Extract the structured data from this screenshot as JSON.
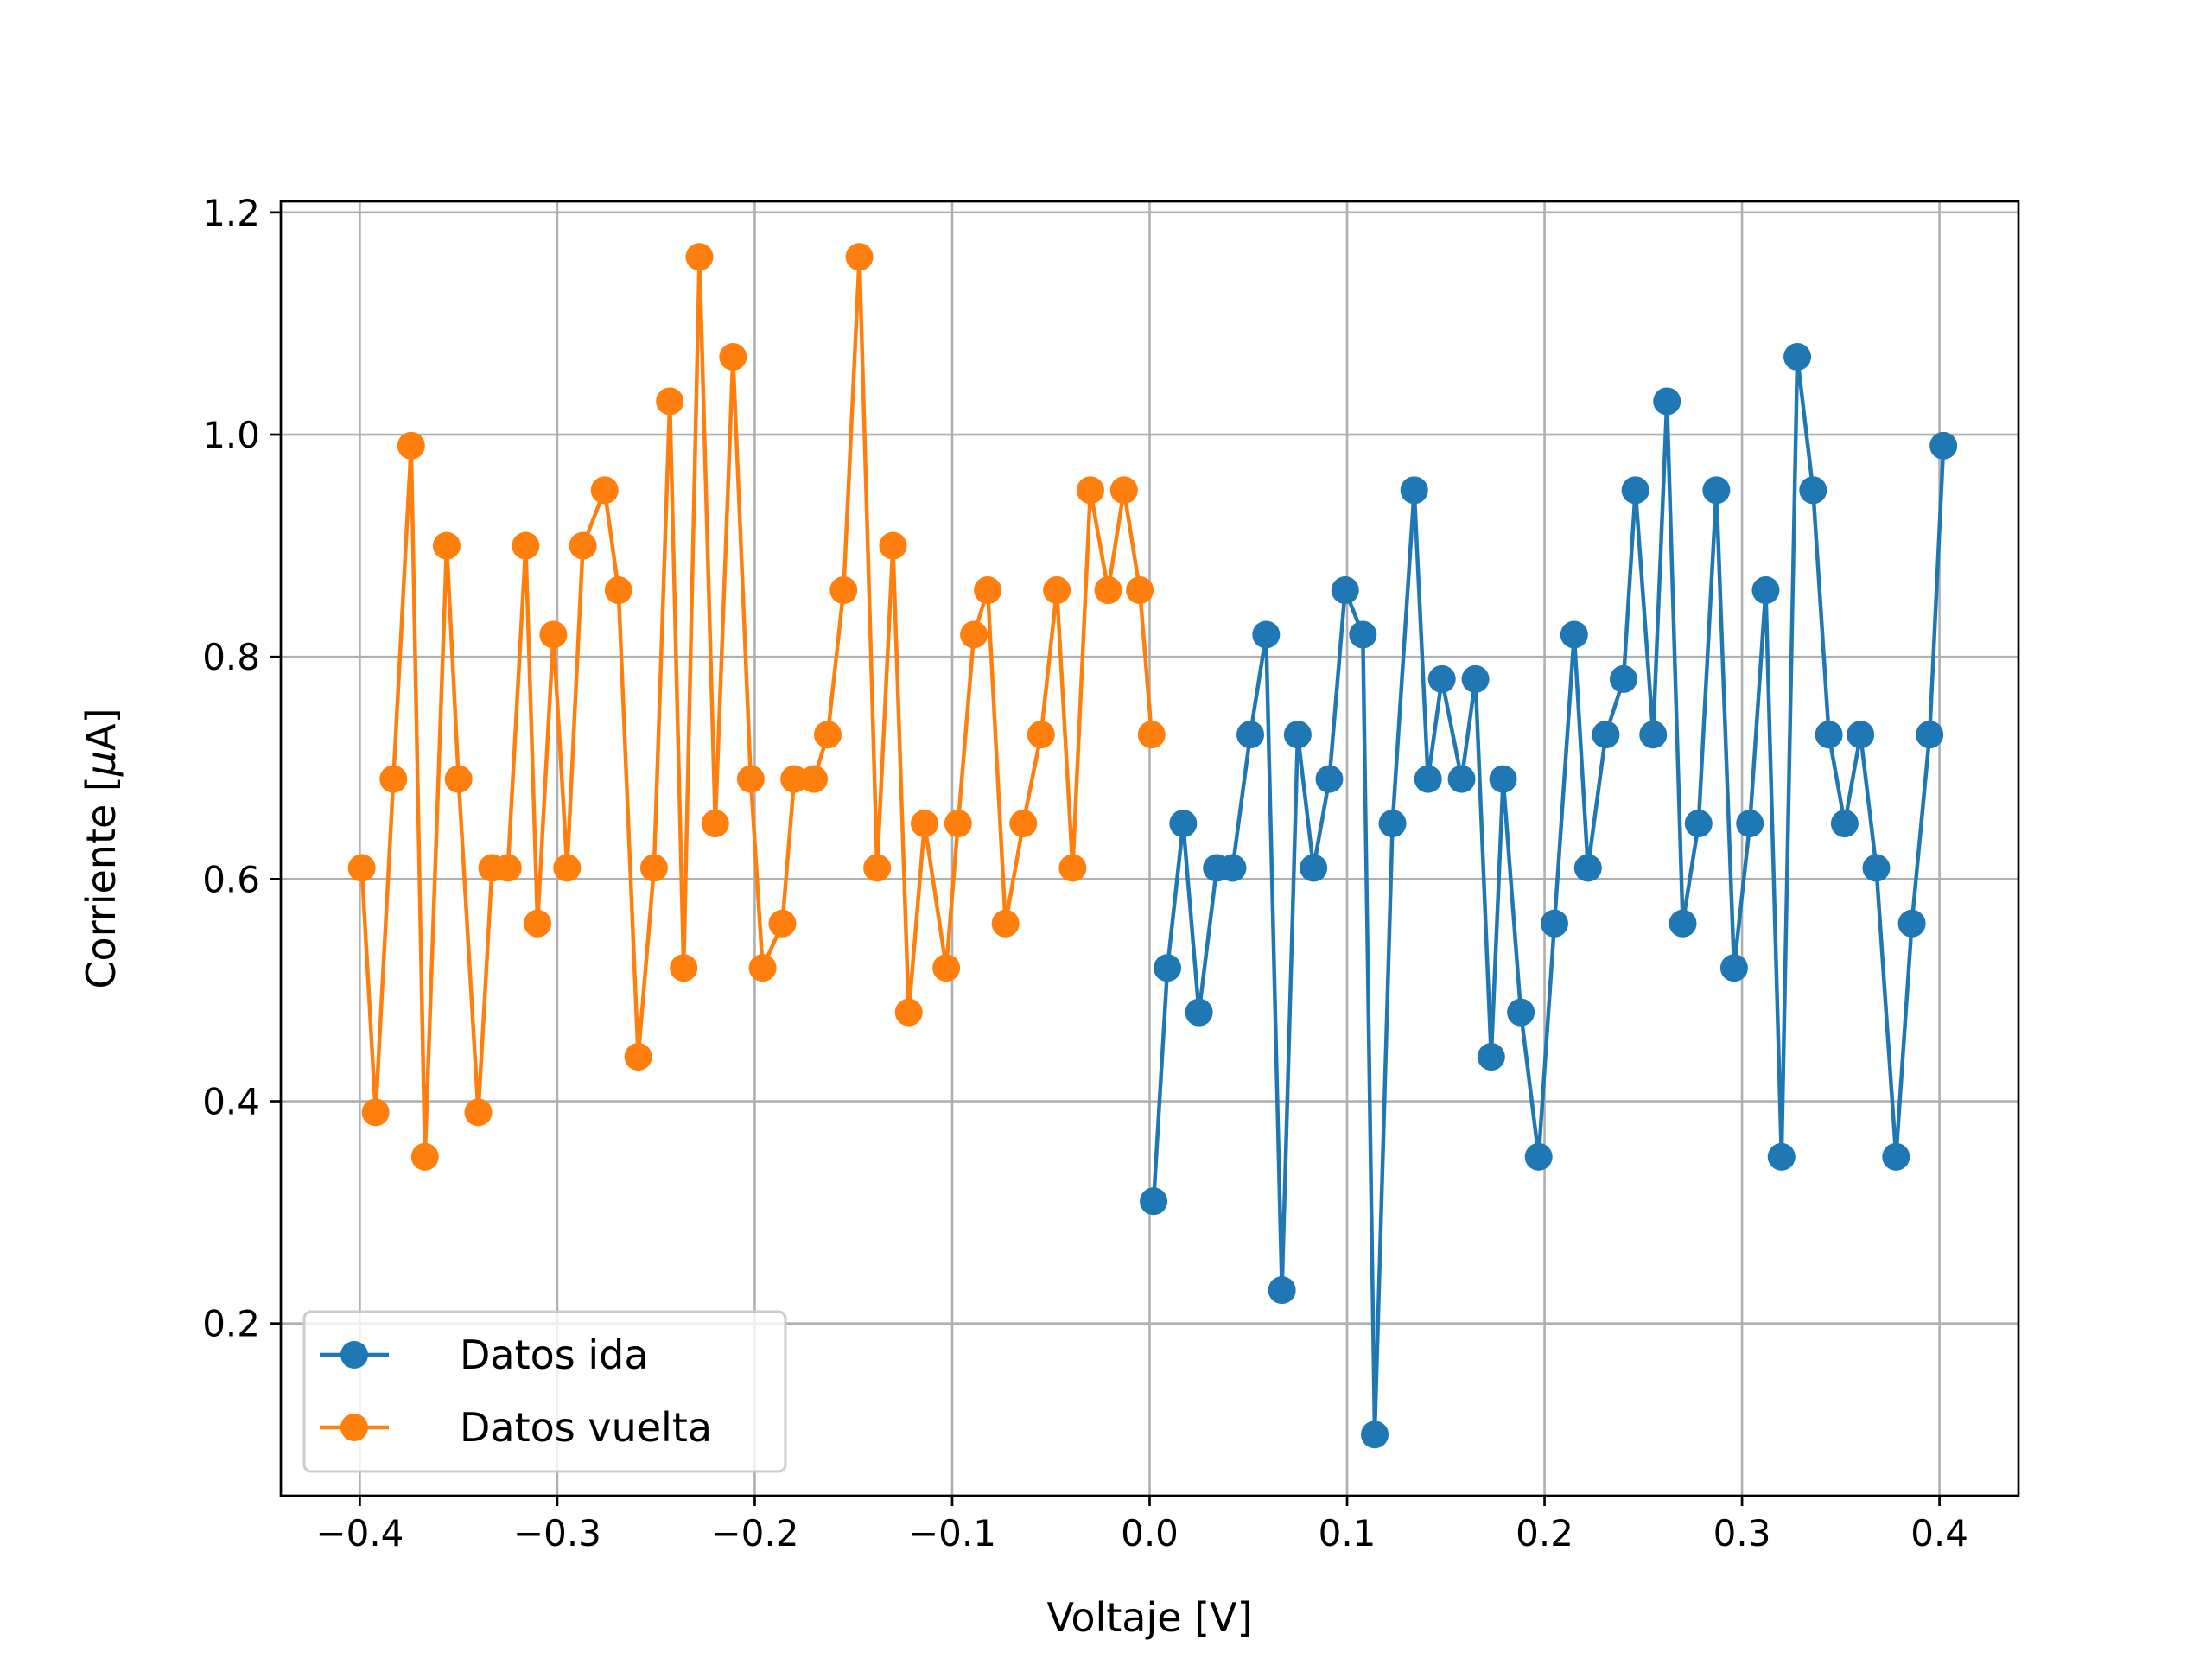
{
  "chart_data": {
    "type": "line",
    "xlabel": "Voltaje [V]",
    "ylabel_prefix": "Corriente [",
    "ylabel_mu": "μ",
    "ylabel_suffix": "A]",
    "xlim": [
      -0.44,
      0.44
    ],
    "ylim": [
      0.045,
      1.21
    ],
    "xticks": [
      -0.4,
      -0.3,
      -0.2,
      -0.1,
      0.0,
      0.1,
      0.2,
      0.3,
      0.4
    ],
    "xtick_labels": [
      "−0.4",
      "−0.3",
      "−0.2",
      "−0.1",
      "0.0",
      "0.1",
      "0.2",
      "0.3",
      "0.4"
    ],
    "yticks": [
      0.2,
      0.4,
      0.6,
      0.8,
      1.0,
      1.2
    ],
    "ytick_labels": [
      "0.2",
      "0.4",
      "0.6",
      "0.8",
      "1.0",
      "1.2"
    ],
    "grid": true,
    "legend_position": "lower-left",
    "series": [
      {
        "name": "Datos ida",
        "color": "#1f77b4",
        "x": [
          0.002,
          0.009,
          0.017,
          0.025,
          0.034,
          0.042,
          0.051,
          0.059,
          0.067,
          0.075,
          0.083,
          0.091,
          0.099,
          0.108,
          0.114,
          0.123,
          0.134,
          0.141,
          0.148,
          0.158,
          0.165,
          0.173,
          0.179,
          0.188,
          0.197,
          0.205,
          0.215,
          0.222,
          0.231,
          0.24,
          0.246,
          0.255,
          0.262,
          0.27,
          0.278,
          0.287,
          0.296,
          0.304,
          0.312,
          0.32,
          0.328,
          0.336,
          0.344,
          0.352,
          0.36,
          0.368,
          0.378,
          0.386,
          0.395,
          0.402
        ],
        "y": [
          0.31,
          0.52,
          0.65,
          0.48,
          0.61,
          0.61,
          0.73,
          0.82,
          0.23,
          0.73,
          0.61,
          0.69,
          0.86,
          0.82,
          0.1,
          0.65,
          0.95,
          0.69,
          0.78,
          0.69,
          0.78,
          0.44,
          0.69,
          0.48,
          0.35,
          0.56,
          0.82,
          0.61,
          0.73,
          0.78,
          0.95,
          0.73,
          1.03,
          0.56,
          0.65,
          0.95,
          0.52,
          0.65,
          0.86,
          0.35,
          1.07,
          0.95,
          0.73,
          0.65,
          0.73,
          0.61,
          0.35,
          0.56,
          0.73,
          0.99
        ]
      },
      {
        "name": "Datos vuelta",
        "color": "#ff7f0e",
        "x": [
          0.001,
          -0.005,
          -0.013,
          -0.021,
          -0.03,
          -0.039,
          -0.047,
          -0.055,
          -0.064,
          -0.073,
          -0.082,
          -0.089,
          -0.097,
          -0.103,
          -0.114,
          -0.122,
          -0.13,
          -0.138,
          -0.147,
          -0.155,
          -0.163,
          -0.17,
          -0.18,
          -0.186,
          -0.196,
          -0.202,
          -0.211,
          -0.22,
          -0.228,
          -0.236,
          -0.243,
          -0.251,
          -0.259,
          -0.269,
          -0.276,
          -0.287,
          -0.295,
          -0.302,
          -0.31,
          -0.316,
          -0.325,
          -0.333,
          -0.34,
          -0.35,
          -0.356,
          -0.367,
          -0.374,
          -0.383,
          -0.392,
          -0.399
        ],
        "y": [
          0.73,
          0.86,
          0.95,
          0.86,
          0.95,
          0.61,
          0.86,
          0.73,
          0.65,
          0.56,
          0.86,
          0.82,
          0.65,
          0.52,
          0.65,
          0.48,
          0.9,
          0.61,
          1.16,
          0.86,
          0.73,
          0.69,
          0.69,
          0.56,
          0.52,
          0.69,
          1.07,
          0.65,
          1.16,
          0.52,
          1.03,
          0.61,
          0.44,
          0.86,
          0.95,
          0.9,
          0.61,
          0.82,
          0.56,
          0.9,
          0.61,
          0.61,
          0.39,
          0.69,
          0.9,
          0.35,
          0.99,
          0.69,
          0.39,
          0.61
        ]
      }
    ]
  }
}
